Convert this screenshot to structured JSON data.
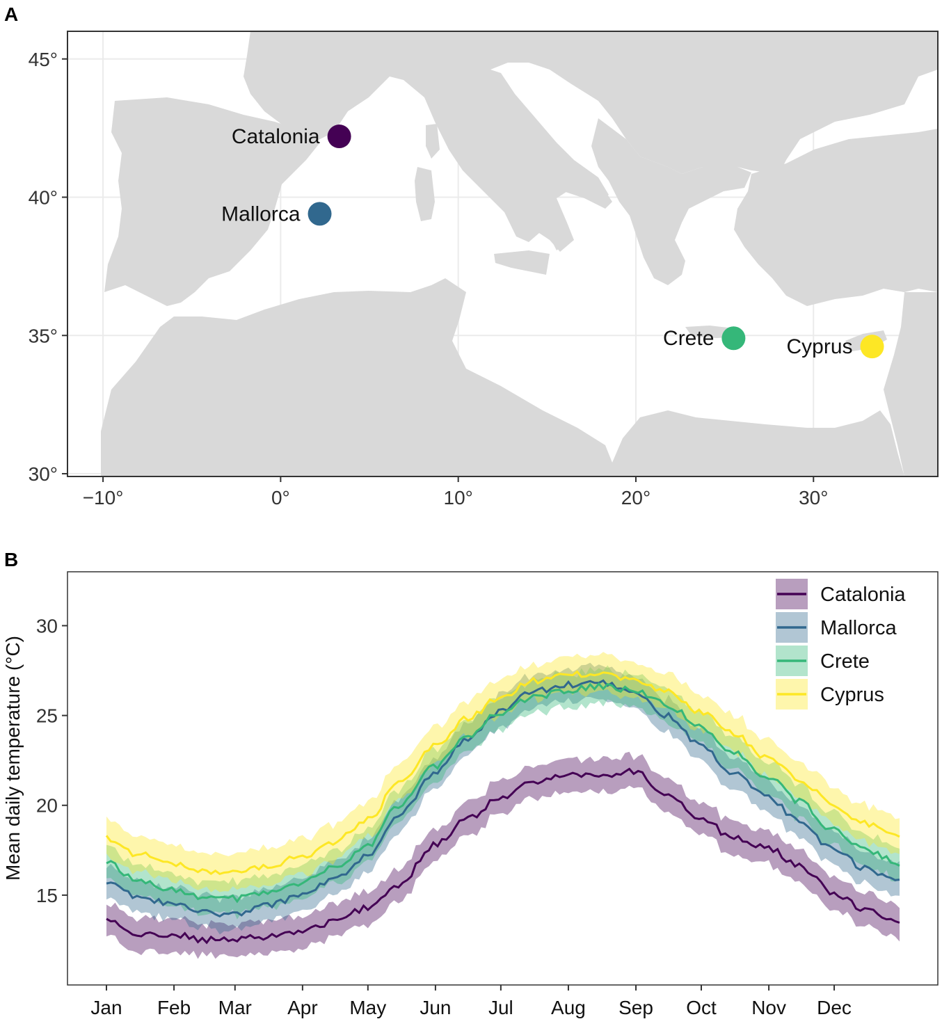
{
  "panel_a": {
    "tag": "A",
    "chart_data": {
      "type": "scatter",
      "title": "",
      "xlabel": "",
      "ylabel": "",
      "xlim": [
        -12,
        37
      ],
      "ylim": [
        29.9,
        46
      ],
      "x_ticks": [
        {
          "value": -10,
          "label": "−10°"
        },
        {
          "value": 0,
          "label": "0°"
        },
        {
          "value": 10,
          "label": "10°"
        },
        {
          "value": 20,
          "label": "20°"
        },
        {
          "value": 30,
          "label": "30°"
        }
      ],
      "y_ticks": [
        {
          "value": 30,
          "label": "30°"
        },
        {
          "value": 35,
          "label": "35°"
        },
        {
          "value": 40,
          "label": "40°"
        },
        {
          "value": 45,
          "label": "45°"
        }
      ],
      "sites": [
        {
          "name": "Catalonia",
          "lon": 3.3,
          "lat": 42.2,
          "color": "#440154"
        },
        {
          "name": "Mallorca",
          "lon": 2.2,
          "lat": 39.4,
          "color": "#31688e"
        },
        {
          "name": "Crete",
          "lon": 25.5,
          "lat": 34.9,
          "color": "#35b779"
        },
        {
          "name": "Cyprus",
          "lon": 33.3,
          "lat": 34.6,
          "color": "#fde725"
        }
      ]
    }
  },
  "panel_b": {
    "tag": "B",
    "chart_data": {
      "type": "line",
      "title": "",
      "xlabel": "",
      "ylabel": "Mean daily temperature (°C)",
      "ylim": [
        10,
        33
      ],
      "y_ticks": [
        15,
        20,
        25,
        30
      ],
      "months": [
        "Jan",
        "Feb",
        "Mar",
        "Apr",
        "May",
        "Jun",
        "Jul",
        "Aug",
        "Sep",
        "Oct",
        "Nov",
        "Dec"
      ],
      "x": [
        1,
        15,
        32,
        46,
        60,
        74,
        91,
        105,
        121,
        135,
        152,
        166,
        182,
        196,
        213,
        227,
        244,
        258,
        274,
        288,
        305,
        319,
        335,
        349,
        365
      ],
      "legend_position": "top-right",
      "series": [
        {
          "name": "Catalonia",
          "color": "#440154",
          "values": [
            13.6,
            12.8,
            12.8,
            12.5,
            12.5,
            12.7,
            13.0,
            13.5,
            14.3,
            15.6,
            17.8,
            19.2,
            20.4,
            21.2,
            21.8,
            21.6,
            21.9,
            20.6,
            19.3,
            18.2,
            17.6,
            16.6,
            15.1,
            14.2,
            13.5
          ],
          "band": 0.9
        },
        {
          "name": "Mallorca",
          "color": "#31688e",
          "values": [
            15.8,
            14.9,
            14.5,
            14.0,
            13.9,
            14.4,
            15.0,
            15.8,
            17.2,
            19.5,
            21.8,
            23.6,
            25.2,
            26.3,
            26.7,
            26.8,
            26.3,
            25.0,
            23.3,
            21.8,
            20.4,
            19.1,
            17.5,
            16.5,
            15.8
          ],
          "band": 0.9
        },
        {
          "name": "Crete",
          "color": "#35b779",
          "values": [
            16.8,
            15.9,
            15.3,
            14.9,
            14.8,
            15.1,
            15.7,
            16.5,
            17.8,
            19.9,
            22.2,
            23.8,
            25.2,
            26.0,
            26.4,
            26.6,
            26.4,
            25.6,
            24.4,
            23.0,
            21.6,
            20.2,
            18.6,
            17.5,
            16.8
          ],
          "band": 0.9
        },
        {
          "name": "Cyprus",
          "color": "#fde725",
          "values": [
            18.2,
            17.3,
            16.8,
            16.3,
            16.2,
            16.6,
            17.2,
            17.9,
            19.2,
            21.2,
            23.3,
            24.8,
            26.0,
            26.9,
            27.3,
            27.3,
            27.0,
            26.3,
            25.2,
            24.0,
            22.6,
            21.4,
            20.0,
            19.0,
            18.4
          ],
          "band": 1.0
        }
      ]
    }
  }
}
